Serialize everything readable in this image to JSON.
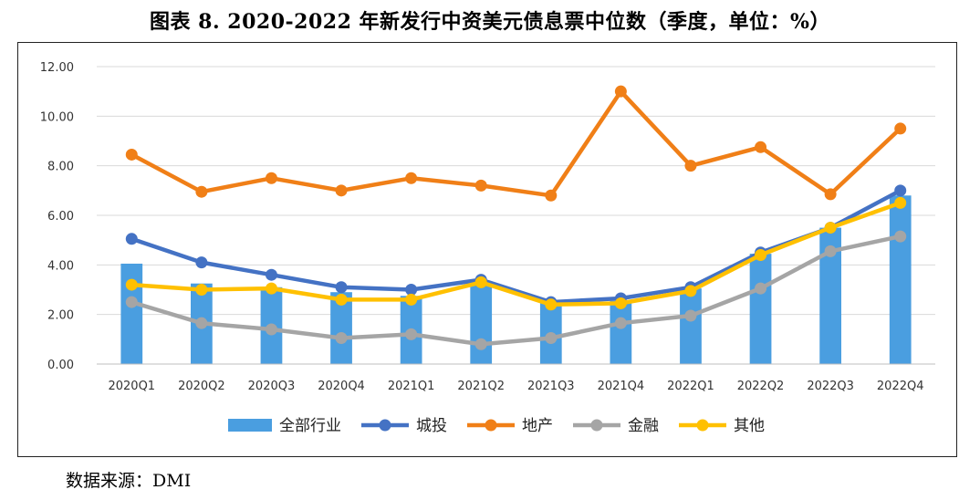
{
  "title": "图表 8. 2020-2022 年新发行中资美元债息票中位数（季度，单位：%）",
  "source": "数据来源：DMI",
  "chart_data": {
    "type": "bar+line",
    "title": "图表 8. 2020-2022 年新发行中资美元债息票中位数（季度，单位：%）",
    "xlabel": "",
    "ylabel": "",
    "ylim": [
      0,
      12
    ],
    "yticks": [
      "0.00",
      "2.00",
      "4.00",
      "6.00",
      "8.00",
      "10.00",
      "12.00"
    ],
    "grid": true,
    "legend_position": "bottom",
    "categories": [
      "2020Q1",
      "2020Q2",
      "2020Q3",
      "2020Q4",
      "2021Q1",
      "2021Q2",
      "2021Q3",
      "2021Q4",
      "2022Q1",
      "2022Q2",
      "2022Q3",
      "2022Q4"
    ],
    "series": [
      {
        "name": "全部行业",
        "kind": "bar",
        "color": "#4a9ee0",
        "values": [
          4.05,
          3.25,
          3.1,
          2.9,
          2.75,
          3.35,
          2.5,
          2.55,
          3.05,
          4.45,
          5.5,
          6.8
        ]
      },
      {
        "name": "城投",
        "kind": "line",
        "color": "#4472c4",
        "values": [
          5.05,
          4.1,
          3.6,
          3.1,
          3.0,
          3.4,
          2.5,
          2.65,
          3.1,
          4.5,
          5.5,
          7.0
        ]
      },
      {
        "name": "地产",
        "kind": "line",
        "color": "#f07f17",
        "values": [
          8.45,
          6.95,
          7.5,
          7.0,
          7.5,
          7.2,
          6.8,
          11.0,
          8.0,
          8.75,
          6.85,
          9.5
        ]
      },
      {
        "name": "金融",
        "kind": "line",
        "color": "#a5a5a5",
        "values": [
          2.5,
          1.65,
          1.4,
          1.05,
          1.2,
          0.8,
          1.05,
          1.65,
          1.95,
          3.05,
          4.55,
          5.15
        ]
      },
      {
        "name": "其他",
        "kind": "line",
        "color": "#ffc000",
        "values": [
          3.2,
          3.0,
          3.05,
          2.6,
          2.6,
          3.3,
          2.4,
          2.45,
          2.95,
          4.4,
          5.5,
          6.5
        ]
      }
    ]
  }
}
